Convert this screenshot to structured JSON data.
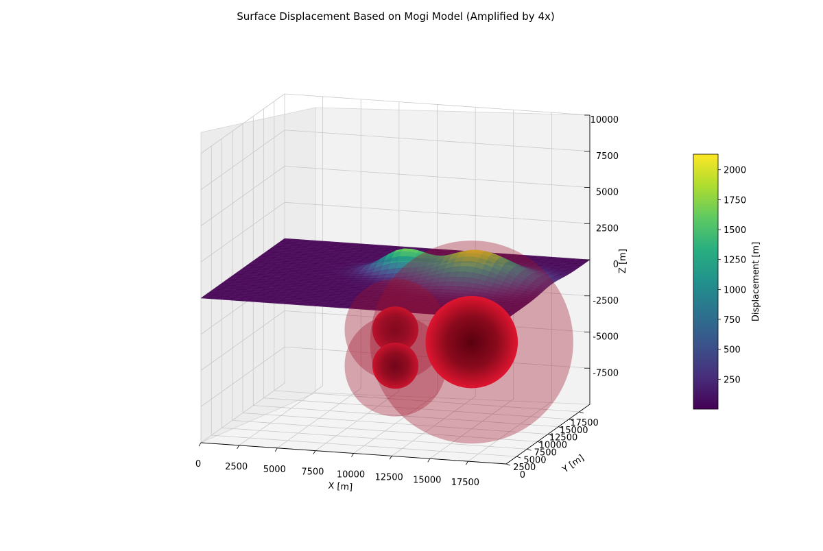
{
  "chart_data": {
    "type": "surface3d",
    "title": "Surface Displacement Based on Mogi Model (Amplified by 4x)",
    "xlabel": "X [m]",
    "ylabel": "Y [m]",
    "zlabel": "Z [m]",
    "xlim": [
      0,
      20000
    ],
    "ylim": [
      0,
      20000
    ],
    "zlim": [
      -10000,
      10000
    ],
    "x_ticks": [
      0,
      2500,
      5000,
      7500,
      10000,
      12500,
      15000,
      17500
    ],
    "y_ticks": [
      0,
      2500,
      5000,
      7500,
      10000,
      12500,
      15000,
      17500
    ],
    "z_ticks": [
      -7500,
      -5000,
      -2500,
      0,
      2500,
      5000,
      7500,
      10000
    ],
    "grid": true,
    "colormap": "viridis",
    "colorbar": {
      "label": "Displacement [m]",
      "min": 0,
      "max": 2130,
      "ticks": [
        250,
        500,
        750,
        1000,
        1250,
        1500,
        1750,
        2000
      ]
    },
    "sources": [
      {
        "x": 10000,
        "y": 10000,
        "depth": -3500,
        "radius": 1100
      },
      {
        "x": 10000,
        "y": 10000,
        "depth": -6000,
        "radius": 1100
      },
      {
        "x": 15000,
        "y": 10000,
        "depth": -4000,
        "radius": 2200
      }
    ]
  }
}
